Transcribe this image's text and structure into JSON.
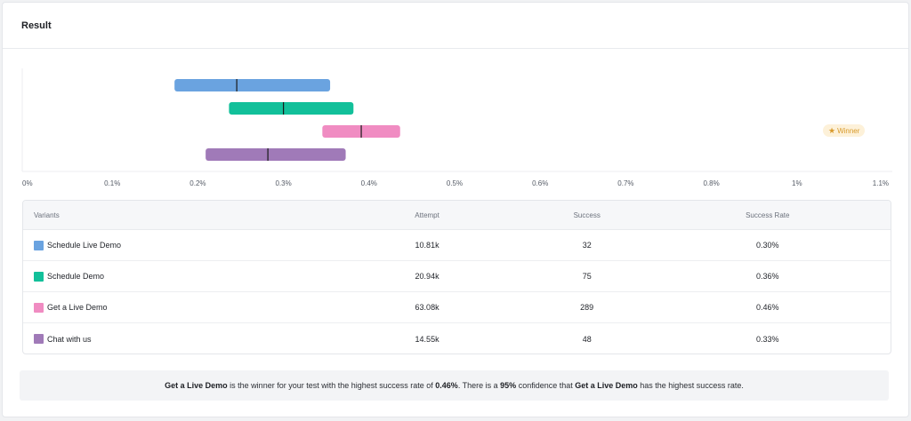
{
  "card": {
    "title": "Result"
  },
  "chart_data": {
    "type": "interval",
    "x_min": 0,
    "x_max": 1.1,
    "ticks": [
      "0%",
      "0.1%",
      "0.2%",
      "0.3%",
      "0.4%",
      "0.5%",
      "0.6%",
      "0.7%",
      "0.8%",
      "1%",
      "1.1%"
    ],
    "series": [
      {
        "name": "Schedule Live Demo",
        "low": 0.19,
        "mid": 0.27,
        "high": 0.39,
        "color": "#6aa3e0"
      },
      {
        "name": "Schedule Demo",
        "low": 0.26,
        "mid": 0.33,
        "high": 0.42,
        "color": "#12c09a"
      },
      {
        "name": "Get a Live Demo",
        "low": 0.38,
        "mid": 0.43,
        "high": 0.48,
        "color": "#f08cc2"
      },
      {
        "name": "Chat with us",
        "low": 0.23,
        "mid": 0.31,
        "high": 0.41,
        "color": "#a07ab8"
      }
    ]
  },
  "badge": {
    "label": "Winner",
    "icon": "star-icon",
    "color": "#d89a2b"
  },
  "table": {
    "headers": {
      "variant": "Variants",
      "attempt": "Attempt",
      "success": "Success",
      "rate": "Success Rate"
    },
    "rows": [
      {
        "variant": "Schedule Live Demo",
        "attempt": "10.81k",
        "success": "32",
        "rate": "0.30%",
        "color": "#6aa3e0"
      },
      {
        "variant": "Schedule Demo",
        "attempt": "20.94k",
        "success": "75",
        "rate": "0.36%",
        "color": "#12c09a"
      },
      {
        "variant": "Get a Live Demo",
        "attempt": "63.08k",
        "success": "289",
        "rate": "0.46%",
        "color": "#f08cc2"
      },
      {
        "variant": "Chat with us",
        "attempt": "14.55k",
        "success": "48",
        "rate": "0.33%",
        "color": "#a07ab8"
      }
    ]
  },
  "summary": {
    "winner": "Get a Live Demo",
    "text1": " is the winner for your test with the highest success rate of ",
    "rate": "0.46%",
    "text2": ". There is a ",
    "confidence": "95%",
    "text3": " confidence that ",
    "winner2": "Get a Live Demo",
    "text4": " has the highest success rate."
  }
}
